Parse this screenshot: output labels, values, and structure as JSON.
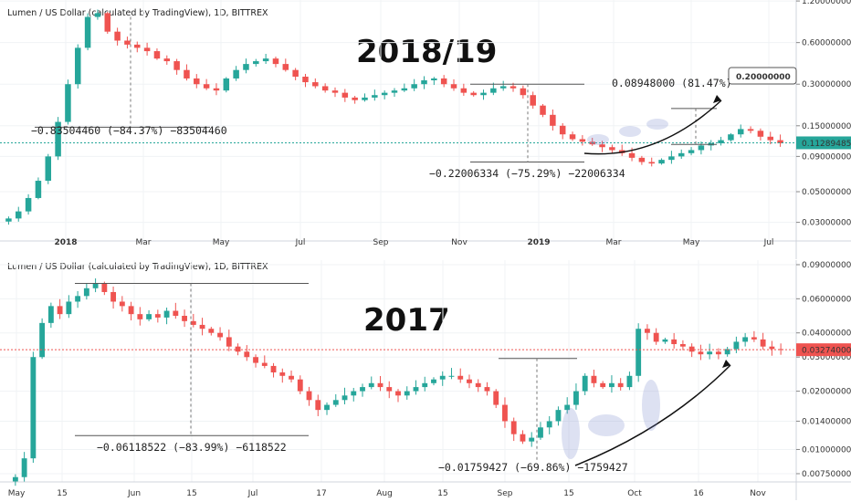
{
  "chart_data": [
    {
      "type": "candlestick",
      "panel": "top",
      "title": "Lumen / US Dollar (calculated by TradingView), 1D, BITTREX",
      "overlay_label": "2018/19",
      "y_scale": "log",
      "ylim": [
        0.022,
        1.22
      ],
      "y_ticks": [
        {
          "v": 1.2,
          "label": "1.20000000"
        },
        {
          "v": 0.6,
          "label": "0.60000000"
        },
        {
          "v": 0.3,
          "label": "0.30000000"
        },
        {
          "v": 0.15,
          "label": "0.15000000"
        },
        {
          "v": 0.09,
          "label": "0.09000000"
        },
        {
          "v": 0.05,
          "label": "0.05000000"
        },
        {
          "v": 0.03,
          "label": "0.03000000"
        }
      ],
      "x_ticks": [
        "2018",
        "Mar",
        "May",
        "Jul",
        "Sep",
        "Nov",
        "2019",
        "Mar",
        "May",
        "Jul"
      ],
      "bold_x_ticks": [
        "2018",
        "2019"
      ],
      "price_label": {
        "v": 0.11289485,
        "label": "0.11289485",
        "color": "#26a69a"
      },
      "target_label": {
        "v": 0.2,
        "label": "0.20000000"
      },
      "annotations": [
        "−0.83504460 (−84.37%) −83504460",
        "−0.22006334 (−75.29%) −22006334",
        "0.08948000 (81.47%)"
      ],
      "series": [
        {
          "name": "close",
          "values": [
            0.032,
            0.036,
            0.045,
            0.06,
            0.09,
            0.16,
            0.3,
            0.55,
            0.92,
            0.98,
            0.72,
            0.62,
            0.58,
            0.55,
            0.52,
            0.46,
            0.44,
            0.38,
            0.33,
            0.3,
            0.28,
            0.27,
            0.33,
            0.38,
            0.42,
            0.44,
            0.46,
            0.42,
            0.38,
            0.34,
            0.31,
            0.29,
            0.27,
            0.26,
            0.24,
            0.23,
            0.24,
            0.25,
            0.26,
            0.27,
            0.28,
            0.3,
            0.32,
            0.33,
            0.3,
            0.28,
            0.26,
            0.25,
            0.26,
            0.28,
            0.29,
            0.28,
            0.25,
            0.21,
            0.18,
            0.15,
            0.13,
            0.12,
            0.115,
            0.11,
            0.105,
            0.1,
            0.095,
            0.088,
            0.082,
            0.08,
            0.085,
            0.09,
            0.095,
            0.1,
            0.108,
            0.112,
            0.118,
            0.13,
            0.142,
            0.138,
            0.125,
            0.118,
            0.112
          ]
        }
      ]
    },
    {
      "type": "candlestick",
      "panel": "bottom",
      "title": "Lumen / US Dollar (calculated by TradingView), 1D, BITTREX",
      "overlay_label": "2017",
      "y_scale": "log",
      "ylim": [
        0.0068,
        0.095
      ],
      "y_ticks": [
        {
          "v": 0.09,
          "label": "0.09000000"
        },
        {
          "v": 0.06,
          "label": "0.06000000"
        },
        {
          "v": 0.04,
          "label": "0.04000000"
        },
        {
          "v": 0.03,
          "label": "0.03000000"
        },
        {
          "v": 0.02,
          "label": "0.02000000"
        },
        {
          "v": 0.014,
          "label": "0.01400000"
        },
        {
          "v": 0.01,
          "label": "0.01000000"
        },
        {
          "v": 0.0075,
          "label": "0.00750000"
        }
      ],
      "x_ticks": [
        "May",
        "15",
        "Jun",
        "15",
        "Jul",
        "17",
        "Aug",
        "15",
        "Sep",
        "15",
        "Oct",
        "16",
        "Nov"
      ],
      "bold_x_ticks": [],
      "price_label": {
        "v": 0.03274,
        "label": "0.03274000",
        "color": "#ef5350"
      },
      "annotations": [
        "−0.06118522 (−83.99%) −6118522",
        "−0.01759427 (−69.86%) −1759427"
      ],
      "series": [
        {
          "name": "close",
          "values": [
            0.0072,
            0.009,
            0.03,
            0.045,
            0.055,
            0.05,
            0.058,
            0.062,
            0.068,
            0.072,
            0.065,
            0.058,
            0.055,
            0.05,
            0.047,
            0.05,
            0.048,
            0.052,
            0.049,
            0.046,
            0.044,
            0.042,
            0.04,
            0.038,
            0.034,
            0.032,
            0.03,
            0.028,
            0.027,
            0.025,
            0.024,
            0.023,
            0.02,
            0.018,
            0.016,
            0.017,
            0.018,
            0.019,
            0.02,
            0.021,
            0.022,
            0.021,
            0.02,
            0.019,
            0.02,
            0.021,
            0.022,
            0.023,
            0.024,
            0.024,
            0.023,
            0.022,
            0.021,
            0.02,
            0.017,
            0.014,
            0.012,
            0.011,
            0.0115,
            0.013,
            0.014,
            0.016,
            0.017,
            0.02,
            0.024,
            0.022,
            0.021,
            0.022,
            0.021,
            0.024,
            0.042,
            0.04,
            0.036,
            0.037,
            0.035,
            0.034,
            0.032,
            0.031,
            0.032,
            0.031,
            0.033,
            0.036,
            0.038,
            0.037,
            0.034,
            0.033,
            0.0327
          ]
        }
      ]
    }
  ],
  "colors": {
    "up": "#26a69a",
    "down": "#ef5350",
    "text": "#222222",
    "grid": "#f0f3f5"
  }
}
